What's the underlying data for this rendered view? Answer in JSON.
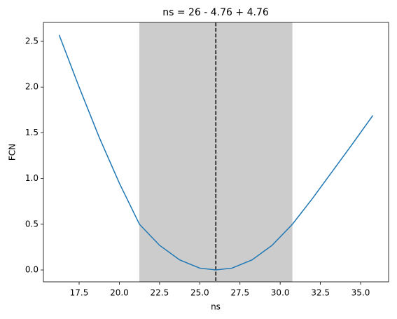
{
  "chart_data": {
    "type": "line",
    "title": "ns = 26 - 4.76 + 4.76",
    "x_label": "ns",
    "y_label": "FCN",
    "x": [
      16.26,
      17.5,
      18.75,
      20,
      21.25,
      22.5,
      23.75,
      25,
      26,
      27,
      28.25,
      29.5,
      30.76,
      32,
      33.25,
      34.5,
      35.76
    ],
    "series": [
      {
        "name": "FCN",
        "color": "#1f77b4",
        "values": [
          2.57,
          2.0,
          1.45,
          0.95,
          0.5,
          0.27,
          0.11,
          0.02,
          0,
          0.02,
          0.11,
          0.27,
          0.5,
          0.78,
          1.08,
          1.38,
          1.69
        ]
      }
    ],
    "vline": 26,
    "band": [
      21.24,
      30.76
    ],
    "band_color": "#cccccc",
    "xlim": [
      15.28,
      36.74
    ],
    "ylim": [
      -0.13,
      2.707
    ],
    "xticks": [
      17.5,
      {
        "value": 20,
        "label": "20.0"
      },
      22.5,
      {
        "value": 25,
        "label": "25.0"
      },
      27.5,
      {
        "value": 30,
        "label": "30.0"
      },
      32.5,
      {
        "value": 35,
        "label": "35.0"
      }
    ],
    "yticks": [
      {
        "value": 0,
        "label": "0.0"
      },
      0.5,
      {
        "value": 1,
        "label": "1.0"
      },
      1.5,
      {
        "value": 2,
        "label": "2.0"
      },
      2.5
    ]
  }
}
